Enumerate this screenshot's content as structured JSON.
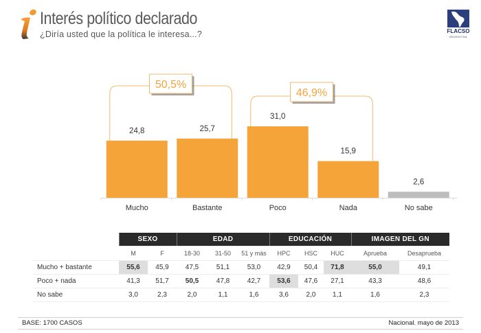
{
  "header": {
    "title": "Interés político declarado",
    "subtitle": "¿Diría usted que la política le interesa...?",
    "logo_text": "FLACSO",
    "logo_subtext": "ARGENTINA"
  },
  "colors": {
    "accent": "#f5a43a",
    "neutral_bar": "#bdbdbd",
    "header_dark": "#2a2a2a",
    "highlight_cell": "#dedede"
  },
  "chart_data": {
    "type": "bar",
    "title": "Interés político declarado",
    "subtitle": "¿Diría usted que la política le interesa...?",
    "categories": [
      "Mucho",
      "Bastante",
      "Poco",
      "Nada",
      "No sabe"
    ],
    "values": [
      24.8,
      25.7,
      31.0,
      15.9,
      2.6
    ],
    "value_labels": [
      "24,8",
      "25,7",
      "31,0",
      "15,9",
      "2,6"
    ],
    "bar_colors": [
      "#f5a43a",
      "#f5a43a",
      "#f5a43a",
      "#f5a43a",
      "#bdbdbd"
    ],
    "xlabel": "",
    "ylabel": "",
    "ylim": [
      0,
      35
    ],
    "grid": false,
    "legend": "none",
    "annotations": [
      {
        "label": "50,5%",
        "spans": [
          "Mucho",
          "Bastante"
        ],
        "value": 50.5
      },
      {
        "label": "46,9%",
        "spans": [
          "Poco",
          "Nada"
        ],
        "value": 46.9
      }
    ]
  },
  "table": {
    "groups": [
      {
        "label": "SEXO",
        "span": 2
      },
      {
        "label": "EDAD",
        "span": 3
      },
      {
        "label": "EDUCACIÓN",
        "span": 3
      },
      {
        "label": "IMAGEN DEL GN",
        "span": 2
      }
    ],
    "columns": [
      "M",
      "F",
      "18-30",
      "31-50",
      "51 y más",
      "HPC",
      "HSC",
      "HUC",
      "Aprueba",
      "Desaprueba"
    ],
    "rows": [
      {
        "label": "Mucho + bastante",
        "values": [
          "55,6",
          "45,9",
          "47,5",
          "51,1",
          "53,0",
          "42,9",
          "50,4",
          "71,8",
          "55,0",
          "49,1"
        ],
        "highlight": [
          0,
          7,
          8
        ],
        "bold": [
          0,
          7,
          8
        ]
      },
      {
        "label": "Poco + nada",
        "values": [
          "41,3",
          "51,7",
          "50,5",
          "47,8",
          "42,7",
          "53,6",
          "47,6",
          "27,1",
          "43,3",
          "48,6"
        ],
        "highlight": [
          5
        ],
        "bold": [
          2,
          5
        ]
      },
      {
        "label": "No sabe",
        "values": [
          "3,0",
          "2,3",
          "2,0",
          "1,1",
          "1,6",
          "3,6",
          "2,0",
          "1,1",
          "1,6",
          "2,3"
        ],
        "highlight": [],
        "bold": []
      }
    ]
  },
  "footer": {
    "base": "BASE: 1700 CASOS",
    "source": "Nacional. mayo de 2013"
  }
}
